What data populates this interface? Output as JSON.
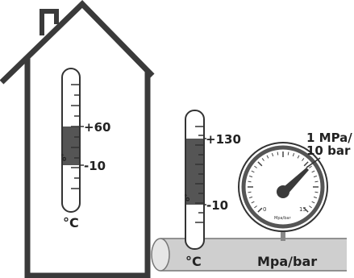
{
  "indoor_thermometer": {
    "max_label": "+60",
    "min_label": "-10",
    "unit_label": "°C",
    "scale_mark": "o°"
  },
  "pipe_thermometer": {
    "max_label": "+130",
    "min_label": "-10",
    "unit_label": "°C",
    "scale_mark": "o°"
  },
  "pressure_gauge": {
    "range_label_line1": "1 MPa/",
    "range_label_line2": "10 bar",
    "unit_label": "Mpa/bar",
    "dial_min": "0",
    "dial_max": "15",
    "dial_unit": "Mpa/bar"
  },
  "colors": {
    "outline": "#3a3a3a",
    "fill_band": "#555555",
    "pipe": "#cfcfcf",
    "gauge_face": "#ffffff"
  }
}
